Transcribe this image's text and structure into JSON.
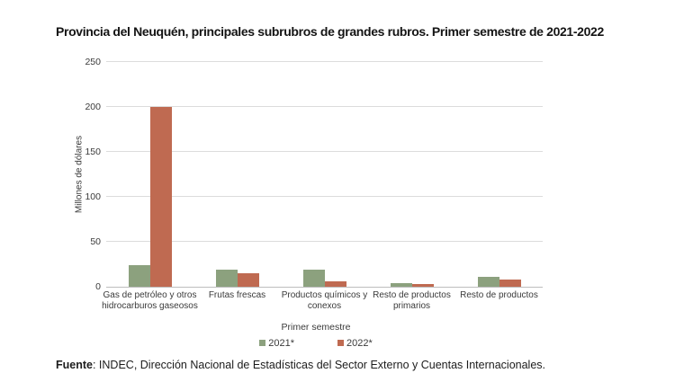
{
  "header": {
    "title": "Provincia del Neuquén, principales subrubros de grandes rubros. Primer semestre de 2021-2022"
  },
  "footer": {
    "bold": "Fuente",
    "rest": ": INDEC, Dirección Nacional de Estadísticas del Sector Externo y Cuentas Internacionales."
  },
  "colors": {
    "series_2021": "#8CA17E",
    "series_2022": "#BF6A51",
    "gridline": "#dcdcdc",
    "axis_line": "#bdbdbd",
    "text": "#3a3a3a"
  },
  "chart_data": {
    "type": "bar",
    "title": "Provincia del Neuquén, principales subrubros de grandes rubros. Primer semestre de 2021-2022",
    "xlabel": "",
    "ylabel": "Millones de dólares",
    "ylim": [
      0,
      250
    ],
    "yticks": [
      0,
      50,
      100,
      150,
      200,
      250
    ],
    "grid": true,
    "legend_title": "Primer semestre",
    "legend_position": "bottom",
    "categories": [
      "Gas de petróleo y otros hidrocarburos gaseosos",
      "Frutas frescas",
      "Productos químicos y conexos",
      "Resto de productos primarios",
      "Resto de productos"
    ],
    "category_lines": [
      [
        "Gas de petróleo y otros",
        "hidrocarburos gaseosos"
      ],
      [
        "Frutas frescas"
      ],
      [
        "Productos químicos y",
        "conexos"
      ],
      [
        "Resto de productos",
        "primarios"
      ],
      [
        "Resto de productos"
      ]
    ],
    "series": [
      {
        "name": "2021*",
        "color": "#8CA17E",
        "values": [
          24,
          19,
          19,
          4,
          11
        ]
      },
      {
        "name": "2022*",
        "color": "#BF6A51",
        "values": [
          200,
          15,
          6,
          3,
          8
        ]
      }
    ]
  }
}
